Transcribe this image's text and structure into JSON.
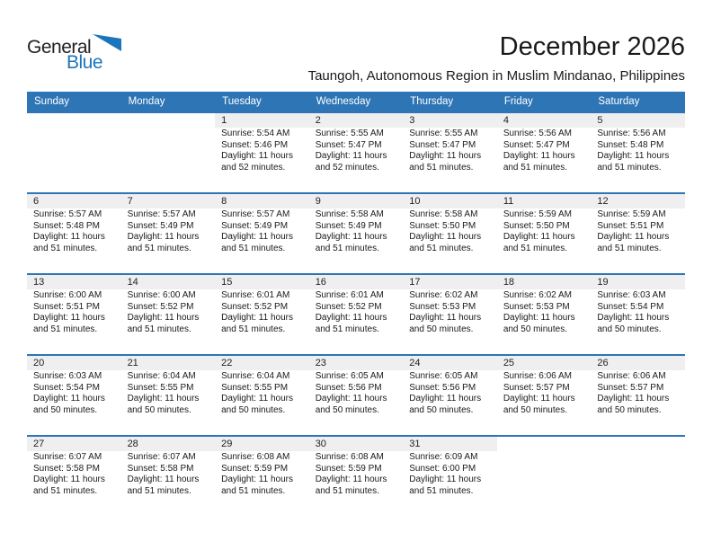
{
  "logo": {
    "part1": "General",
    "part2": "Blue"
  },
  "header": {
    "title": "December 2026",
    "subtitle": "Taungoh, Autonomous Region in Muslim Mindanao, Philippines"
  },
  "colors": {
    "header_bg": "#2e75b6",
    "logo_blue": "#1b75bc",
    "date_band_bg": "#efefef",
    "week_divider": "#2e75b6"
  },
  "weekdays": [
    "Sunday",
    "Monday",
    "Tuesday",
    "Wednesday",
    "Thursday",
    "Friday",
    "Saturday"
  ],
  "weeks": [
    [
      null,
      null,
      {
        "day": "1",
        "sunrise": "Sunrise: 5:54 AM",
        "sunset": "Sunset: 5:46 PM",
        "daylight": "Daylight: 11 hours and 52 minutes."
      },
      {
        "day": "2",
        "sunrise": "Sunrise: 5:55 AM",
        "sunset": "Sunset: 5:47 PM",
        "daylight": "Daylight: 11 hours and 52 minutes."
      },
      {
        "day": "3",
        "sunrise": "Sunrise: 5:55 AM",
        "sunset": "Sunset: 5:47 PM",
        "daylight": "Daylight: 11 hours and 51 minutes."
      },
      {
        "day": "4",
        "sunrise": "Sunrise: 5:56 AM",
        "sunset": "Sunset: 5:47 PM",
        "daylight": "Daylight: 11 hours and 51 minutes."
      },
      {
        "day": "5",
        "sunrise": "Sunrise: 5:56 AM",
        "sunset": "Sunset: 5:48 PM",
        "daylight": "Daylight: 11 hours and 51 minutes."
      }
    ],
    [
      {
        "day": "6",
        "sunrise": "Sunrise: 5:57 AM",
        "sunset": "Sunset: 5:48 PM",
        "daylight": "Daylight: 11 hours and 51 minutes."
      },
      {
        "day": "7",
        "sunrise": "Sunrise: 5:57 AM",
        "sunset": "Sunset: 5:49 PM",
        "daylight": "Daylight: 11 hours and 51 minutes."
      },
      {
        "day": "8",
        "sunrise": "Sunrise: 5:57 AM",
        "sunset": "Sunset: 5:49 PM",
        "daylight": "Daylight: 11 hours and 51 minutes."
      },
      {
        "day": "9",
        "sunrise": "Sunrise: 5:58 AM",
        "sunset": "Sunset: 5:49 PM",
        "daylight": "Daylight: 11 hours and 51 minutes."
      },
      {
        "day": "10",
        "sunrise": "Sunrise: 5:58 AM",
        "sunset": "Sunset: 5:50 PM",
        "daylight": "Daylight: 11 hours and 51 minutes."
      },
      {
        "day": "11",
        "sunrise": "Sunrise: 5:59 AM",
        "sunset": "Sunset: 5:50 PM",
        "daylight": "Daylight: 11 hours and 51 minutes."
      },
      {
        "day": "12",
        "sunrise": "Sunrise: 5:59 AM",
        "sunset": "Sunset: 5:51 PM",
        "daylight": "Daylight: 11 hours and 51 minutes."
      }
    ],
    [
      {
        "day": "13",
        "sunrise": "Sunrise: 6:00 AM",
        "sunset": "Sunset: 5:51 PM",
        "daylight": "Daylight: 11 hours and 51 minutes."
      },
      {
        "day": "14",
        "sunrise": "Sunrise: 6:00 AM",
        "sunset": "Sunset: 5:52 PM",
        "daylight": "Daylight: 11 hours and 51 minutes."
      },
      {
        "day": "15",
        "sunrise": "Sunrise: 6:01 AM",
        "sunset": "Sunset: 5:52 PM",
        "daylight": "Daylight: 11 hours and 51 minutes."
      },
      {
        "day": "16",
        "sunrise": "Sunrise: 6:01 AM",
        "sunset": "Sunset: 5:52 PM",
        "daylight": "Daylight: 11 hours and 51 minutes."
      },
      {
        "day": "17",
        "sunrise": "Sunrise: 6:02 AM",
        "sunset": "Sunset: 5:53 PM",
        "daylight": "Daylight: 11 hours and 50 minutes."
      },
      {
        "day": "18",
        "sunrise": "Sunrise: 6:02 AM",
        "sunset": "Sunset: 5:53 PM",
        "daylight": "Daylight: 11 hours and 50 minutes."
      },
      {
        "day": "19",
        "sunrise": "Sunrise: 6:03 AM",
        "sunset": "Sunset: 5:54 PM",
        "daylight": "Daylight: 11 hours and 50 minutes."
      }
    ],
    [
      {
        "day": "20",
        "sunrise": "Sunrise: 6:03 AM",
        "sunset": "Sunset: 5:54 PM",
        "daylight": "Daylight: 11 hours and 50 minutes."
      },
      {
        "day": "21",
        "sunrise": "Sunrise: 6:04 AM",
        "sunset": "Sunset: 5:55 PM",
        "daylight": "Daylight: 11 hours and 50 minutes."
      },
      {
        "day": "22",
        "sunrise": "Sunrise: 6:04 AM",
        "sunset": "Sunset: 5:55 PM",
        "daylight": "Daylight: 11 hours and 50 minutes."
      },
      {
        "day": "23",
        "sunrise": "Sunrise: 6:05 AM",
        "sunset": "Sunset: 5:56 PM",
        "daylight": "Daylight: 11 hours and 50 minutes."
      },
      {
        "day": "24",
        "sunrise": "Sunrise: 6:05 AM",
        "sunset": "Sunset: 5:56 PM",
        "daylight": "Daylight: 11 hours and 50 minutes."
      },
      {
        "day": "25",
        "sunrise": "Sunrise: 6:06 AM",
        "sunset": "Sunset: 5:57 PM",
        "daylight": "Daylight: 11 hours and 50 minutes."
      },
      {
        "day": "26",
        "sunrise": "Sunrise: 6:06 AM",
        "sunset": "Sunset: 5:57 PM",
        "daylight": "Daylight: 11 hours and 50 minutes."
      }
    ],
    [
      {
        "day": "27",
        "sunrise": "Sunrise: 6:07 AM",
        "sunset": "Sunset: 5:58 PM",
        "daylight": "Daylight: 11 hours and 51 minutes."
      },
      {
        "day": "28",
        "sunrise": "Sunrise: 6:07 AM",
        "sunset": "Sunset: 5:58 PM",
        "daylight": "Daylight: 11 hours and 51 minutes."
      },
      {
        "day": "29",
        "sunrise": "Sunrise: 6:08 AM",
        "sunset": "Sunset: 5:59 PM",
        "daylight": "Daylight: 11 hours and 51 minutes."
      },
      {
        "day": "30",
        "sunrise": "Sunrise: 6:08 AM",
        "sunset": "Sunset: 5:59 PM",
        "daylight": "Daylight: 11 hours and 51 minutes."
      },
      {
        "day": "31",
        "sunrise": "Sunrise: 6:09 AM",
        "sunset": "Sunset: 6:00 PM",
        "daylight": "Daylight: 11 hours and 51 minutes."
      },
      null,
      null
    ]
  ]
}
